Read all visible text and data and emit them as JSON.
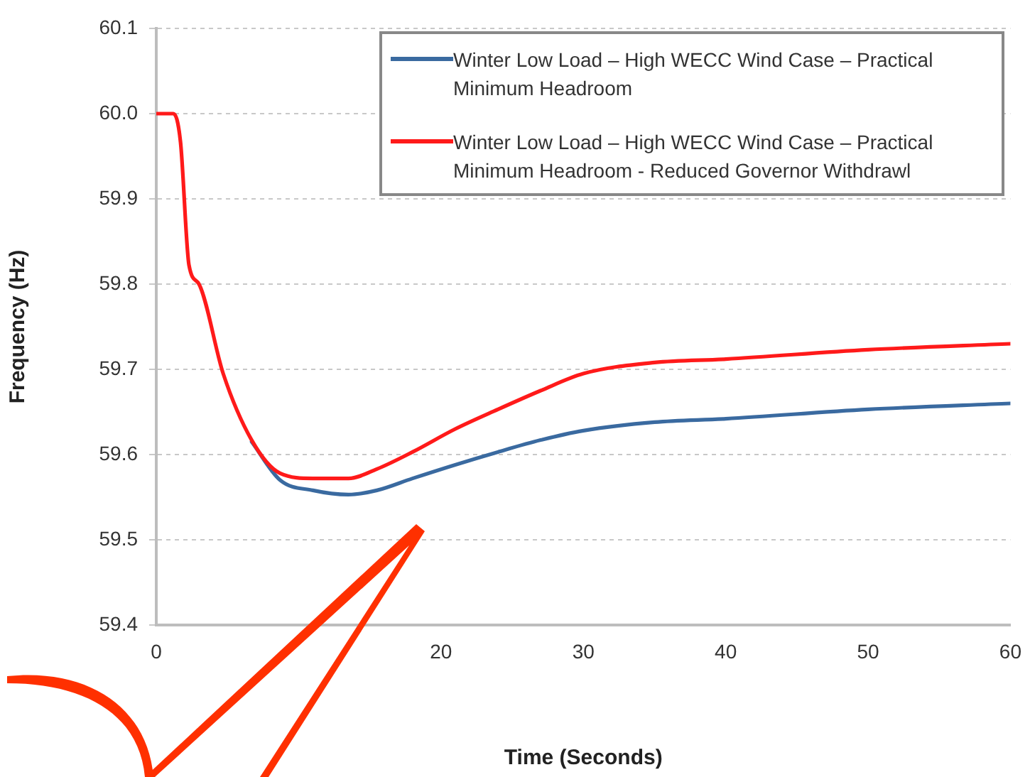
{
  "chart_data": {
    "type": "line",
    "xlabel": "Time (Seconds)",
    "ylabel": "Frequency (Hz)",
    "xlim": [
      0,
      60
    ],
    "xticks": [
      0,
      20,
      30,
      40,
      50,
      60
    ],
    "ylim": [
      59.4,
      60.1
    ],
    "yticks": [
      {
        "value": 59.4,
        "label": "59.4"
      },
      {
        "value": 59.5,
        "label": "59.5"
      },
      {
        "value": 59.6,
        "label": "59.6"
      },
      {
        "value": 59.7,
        "label": "59.7"
      },
      {
        "value": 59.8,
        "label": "59.8"
      },
      {
        "value": 59.9,
        "label": "59.9"
      },
      {
        "value": 60.0,
        "label": "60.0"
      },
      {
        "value": 60.1,
        "label": "60.1"
      }
    ],
    "grid": "y",
    "legend": "top right",
    "marker": "none",
    "line_style": "solid",
    "series": [
      {
        "name": "Winter Low Load – High  WECC Wind Case – Practical Minimum  Headroom",
        "color": "#3a6aa0",
        "x": [
          6.7,
          8.7,
          11,
          13.5,
          15.5,
          18,
          21,
          24,
          27,
          30,
          35,
          40,
          50,
          60
        ],
        "values": [
          59.615,
          59.57,
          59.558,
          59.553,
          59.558,
          59.572,
          59.588,
          59.603,
          59.617,
          59.628,
          59.638,
          59.642,
          59.653,
          59.66
        ]
      },
      {
        "name": "Winter Low Load – High  WECC Wind Case – Practical Minimum  Headroom - Reduced Governor Withdrawl",
        "color": "#ff1a1a",
        "x": [
          0,
          1.2,
          1.7,
          2.3,
          3,
          4.7,
          6.7,
          8.7,
          11,
          13.5,
          15.5,
          18,
          21,
          24,
          27,
          30,
          35,
          40,
          50,
          60
        ],
        "values": [
          60.0,
          60.0,
          59.967,
          59.822,
          59.8,
          59.695,
          59.617,
          59.578,
          59.572,
          59.572,
          59.583,
          59.603,
          59.63,
          59.653,
          59.675,
          59.695,
          59.708,
          59.712,
          59.723,
          59.73
        ]
      }
    ]
  }
}
